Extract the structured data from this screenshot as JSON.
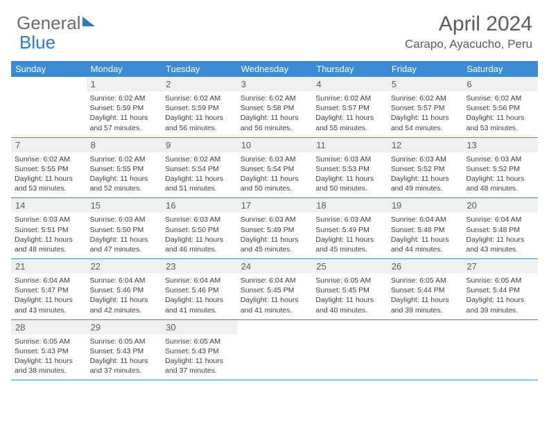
{
  "logo": {
    "part1": "General",
    "part2": "Blue"
  },
  "title": "April 2024",
  "location": "Carapo, Ayacucho, Peru",
  "colors": {
    "header_bg": "#3b8bd4",
    "header_text": "#ffffff",
    "daynum_bg": "#eef0f2",
    "body_text": "#3d3d3d",
    "title_text": "#5a5a5a",
    "logo_gray": "#6b6b6b",
    "logo_blue": "#2f78c4",
    "cell_border": "#3b8bd4"
  },
  "weekdays": [
    "Sunday",
    "Monday",
    "Tuesday",
    "Wednesday",
    "Thursday",
    "Friday",
    "Saturday"
  ],
  "weeks": [
    [
      {
        "empty": true
      },
      {
        "day": "1",
        "sunrise": "Sunrise: 6:02 AM",
        "sunset": "Sunset: 5:59 PM",
        "daylight1": "Daylight: 11 hours",
        "daylight2": "and 57 minutes."
      },
      {
        "day": "2",
        "sunrise": "Sunrise: 6:02 AM",
        "sunset": "Sunset: 5:59 PM",
        "daylight1": "Daylight: 11 hours",
        "daylight2": "and 56 minutes."
      },
      {
        "day": "3",
        "sunrise": "Sunrise: 6:02 AM",
        "sunset": "Sunset: 5:58 PM",
        "daylight1": "Daylight: 11 hours",
        "daylight2": "and 56 minutes."
      },
      {
        "day": "4",
        "sunrise": "Sunrise: 6:02 AM",
        "sunset": "Sunset: 5:57 PM",
        "daylight1": "Daylight: 11 hours",
        "daylight2": "and 55 minutes."
      },
      {
        "day": "5",
        "sunrise": "Sunrise: 6:02 AM",
        "sunset": "Sunset: 5:57 PM",
        "daylight1": "Daylight: 11 hours",
        "daylight2": "and 54 minutes."
      },
      {
        "day": "6",
        "sunrise": "Sunrise: 6:02 AM",
        "sunset": "Sunset: 5:56 PM",
        "daylight1": "Daylight: 11 hours",
        "daylight2": "and 53 minutes."
      }
    ],
    [
      {
        "day": "7",
        "sunrise": "Sunrise: 6:02 AM",
        "sunset": "Sunset: 5:55 PM",
        "daylight1": "Daylight: 11 hours",
        "daylight2": "and 53 minutes."
      },
      {
        "day": "8",
        "sunrise": "Sunrise: 6:02 AM",
        "sunset": "Sunset: 5:55 PM",
        "daylight1": "Daylight: 11 hours",
        "daylight2": "and 52 minutes."
      },
      {
        "day": "9",
        "sunrise": "Sunrise: 6:02 AM",
        "sunset": "Sunset: 5:54 PM",
        "daylight1": "Daylight: 11 hours",
        "daylight2": "and 51 minutes."
      },
      {
        "day": "10",
        "sunrise": "Sunrise: 6:03 AM",
        "sunset": "Sunset: 5:54 PM",
        "daylight1": "Daylight: 11 hours",
        "daylight2": "and 50 minutes."
      },
      {
        "day": "11",
        "sunrise": "Sunrise: 6:03 AM",
        "sunset": "Sunset: 5:53 PM",
        "daylight1": "Daylight: 11 hours",
        "daylight2": "and 50 minutes."
      },
      {
        "day": "12",
        "sunrise": "Sunrise: 6:03 AM",
        "sunset": "Sunset: 5:52 PM",
        "daylight1": "Daylight: 11 hours",
        "daylight2": "and 49 minutes."
      },
      {
        "day": "13",
        "sunrise": "Sunrise: 6:03 AM",
        "sunset": "Sunset: 5:52 PM",
        "daylight1": "Daylight: 11 hours",
        "daylight2": "and 48 minutes."
      }
    ],
    [
      {
        "day": "14",
        "sunrise": "Sunrise: 6:03 AM",
        "sunset": "Sunset: 5:51 PM",
        "daylight1": "Daylight: 11 hours",
        "daylight2": "and 48 minutes."
      },
      {
        "day": "15",
        "sunrise": "Sunrise: 6:03 AM",
        "sunset": "Sunset: 5:50 PM",
        "daylight1": "Daylight: 11 hours",
        "daylight2": "and 47 minutes."
      },
      {
        "day": "16",
        "sunrise": "Sunrise: 6:03 AM",
        "sunset": "Sunset: 5:50 PM",
        "daylight1": "Daylight: 11 hours",
        "daylight2": "and 46 minutes."
      },
      {
        "day": "17",
        "sunrise": "Sunrise: 6:03 AM",
        "sunset": "Sunset: 5:49 PM",
        "daylight1": "Daylight: 11 hours",
        "daylight2": "and 45 minutes."
      },
      {
        "day": "18",
        "sunrise": "Sunrise: 6:03 AM",
        "sunset": "Sunset: 5:49 PM",
        "daylight1": "Daylight: 11 hours",
        "daylight2": "and 45 minutes."
      },
      {
        "day": "19",
        "sunrise": "Sunrise: 6:04 AM",
        "sunset": "Sunset: 5:48 PM",
        "daylight1": "Daylight: 11 hours",
        "daylight2": "and 44 minutes."
      },
      {
        "day": "20",
        "sunrise": "Sunrise: 6:04 AM",
        "sunset": "Sunset: 5:48 PM",
        "daylight1": "Daylight: 11 hours",
        "daylight2": "and 43 minutes."
      }
    ],
    [
      {
        "day": "21",
        "sunrise": "Sunrise: 6:04 AM",
        "sunset": "Sunset: 5:47 PM",
        "daylight1": "Daylight: 11 hours",
        "daylight2": "and 43 minutes."
      },
      {
        "day": "22",
        "sunrise": "Sunrise: 6:04 AM",
        "sunset": "Sunset: 5:46 PM",
        "daylight1": "Daylight: 11 hours",
        "daylight2": "and 42 minutes."
      },
      {
        "day": "23",
        "sunrise": "Sunrise: 6:04 AM",
        "sunset": "Sunset: 5:46 PM",
        "daylight1": "Daylight: 11 hours",
        "daylight2": "and 41 minutes."
      },
      {
        "day": "24",
        "sunrise": "Sunrise: 6:04 AM",
        "sunset": "Sunset: 5:45 PM",
        "daylight1": "Daylight: 11 hours",
        "daylight2": "and 41 minutes."
      },
      {
        "day": "25",
        "sunrise": "Sunrise: 6:05 AM",
        "sunset": "Sunset: 5:45 PM",
        "daylight1": "Daylight: 11 hours",
        "daylight2": "and 40 minutes."
      },
      {
        "day": "26",
        "sunrise": "Sunrise: 6:05 AM",
        "sunset": "Sunset: 5:44 PM",
        "daylight1": "Daylight: 11 hours",
        "daylight2": "and 39 minutes."
      },
      {
        "day": "27",
        "sunrise": "Sunrise: 6:05 AM",
        "sunset": "Sunset: 5:44 PM",
        "daylight1": "Daylight: 11 hours",
        "daylight2": "and 39 minutes."
      }
    ],
    [
      {
        "day": "28",
        "sunrise": "Sunrise: 6:05 AM",
        "sunset": "Sunset: 5:43 PM",
        "daylight1": "Daylight: 11 hours",
        "daylight2": "and 38 minutes."
      },
      {
        "day": "29",
        "sunrise": "Sunrise: 6:05 AM",
        "sunset": "Sunset: 5:43 PM",
        "daylight1": "Daylight: 11 hours",
        "daylight2": "and 37 minutes."
      },
      {
        "day": "30",
        "sunrise": "Sunrise: 6:05 AM",
        "sunset": "Sunset: 5:43 PM",
        "daylight1": "Daylight: 11 hours",
        "daylight2": "and 37 minutes."
      },
      {
        "empty": true
      },
      {
        "empty": true
      },
      {
        "empty": true
      },
      {
        "empty": true
      }
    ]
  ]
}
